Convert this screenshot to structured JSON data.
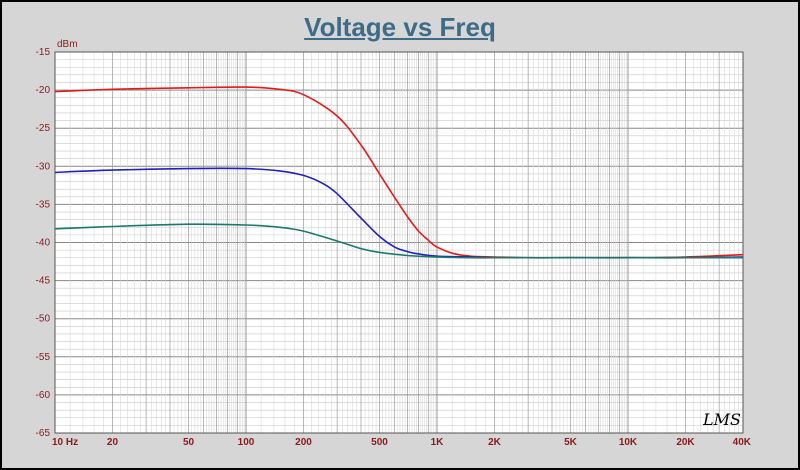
{
  "title": "Voltage vs Freq",
  "watermark": "LMS",
  "chart_data": {
    "type": "line",
    "title": "Voltage vs Freq",
    "xscale": "log",
    "xlim": [
      10,
      40000
    ],
    "ylim": [
      -65,
      -15
    ],
    "ylabel": "dBm",
    "yticks": [
      -15,
      -20,
      -25,
      -30,
      -35,
      -40,
      -45,
      -50,
      -55,
      -60,
      -65
    ],
    "xticks": [
      {
        "v": 10,
        "label": "10 Hz"
      },
      {
        "v": 20,
        "label": "20"
      },
      {
        "v": 50,
        "label": "50"
      },
      {
        "v": 100,
        "label": "100"
      },
      {
        "v": 200,
        "label": "200"
      },
      {
        "v": 500,
        "label": "500"
      },
      {
        "v": 1000,
        "label": "1K"
      },
      {
        "v": 2000,
        "label": "2K"
      },
      {
        "v": 5000,
        "label": "5K"
      },
      {
        "v": 10000,
        "label": "10K"
      },
      {
        "v": 20000,
        "label": "20K"
      },
      {
        "v": 40000,
        "label": "40K"
      }
    ],
    "grid": true,
    "colors": {
      "plot_bg": "#ffffff",
      "grid": "#a0a0a0",
      "frame": "#d6d6d6",
      "title": "#3e6b86",
      "labels": "#8b1a1a"
    },
    "series": [
      {
        "color": "#e41a1a",
        "x": [
          10,
          20,
          50,
          100,
          150,
          200,
          300,
          400,
          500,
          600,
          700,
          800,
          900,
          1000,
          1200,
          1500,
          2000,
          3000,
          5000,
          10000,
          20000,
          40000
        ],
        "y": [
          -20.2,
          -19.9,
          -19.7,
          -19.6,
          -19.9,
          -20.6,
          -23.4,
          -27.2,
          -31,
          -34.1,
          -36.6,
          -38.5,
          -39.7,
          -40.6,
          -41.4,
          -41.8,
          -41.9,
          -42,
          -42,
          -42,
          -41.9,
          -41.6
        ]
      },
      {
        "color": "#2020c0",
        "x": [
          10,
          20,
          50,
          100,
          150,
          200,
          250,
          300,
          400,
          500,
          600,
          700,
          800,
          1000,
          1500,
          2000,
          5000,
          10000,
          20000,
          40000
        ],
        "y": [
          -30.8,
          -30.5,
          -30.3,
          -30.3,
          -30.6,
          -31.2,
          -32.2,
          -33.6,
          -36.8,
          -39.2,
          -40.6,
          -41.2,
          -41.5,
          -41.8,
          -41.9,
          -42,
          -42,
          -42,
          -42,
          -41.9
        ]
      },
      {
        "color": "#1a7a6a",
        "x": [
          10,
          20,
          50,
          100,
          150,
          200,
          300,
          400,
          500,
          700,
          1000,
          1500,
          2000,
          5000,
          10000,
          20000,
          40000
        ],
        "y": [
          -38.2,
          -37.9,
          -37.6,
          -37.7,
          -38,
          -38.5,
          -39.8,
          -40.8,
          -41.3,
          -41.7,
          -41.9,
          -42,
          -42,
          -42,
          -42,
          -42,
          -42
        ]
      }
    ]
  }
}
